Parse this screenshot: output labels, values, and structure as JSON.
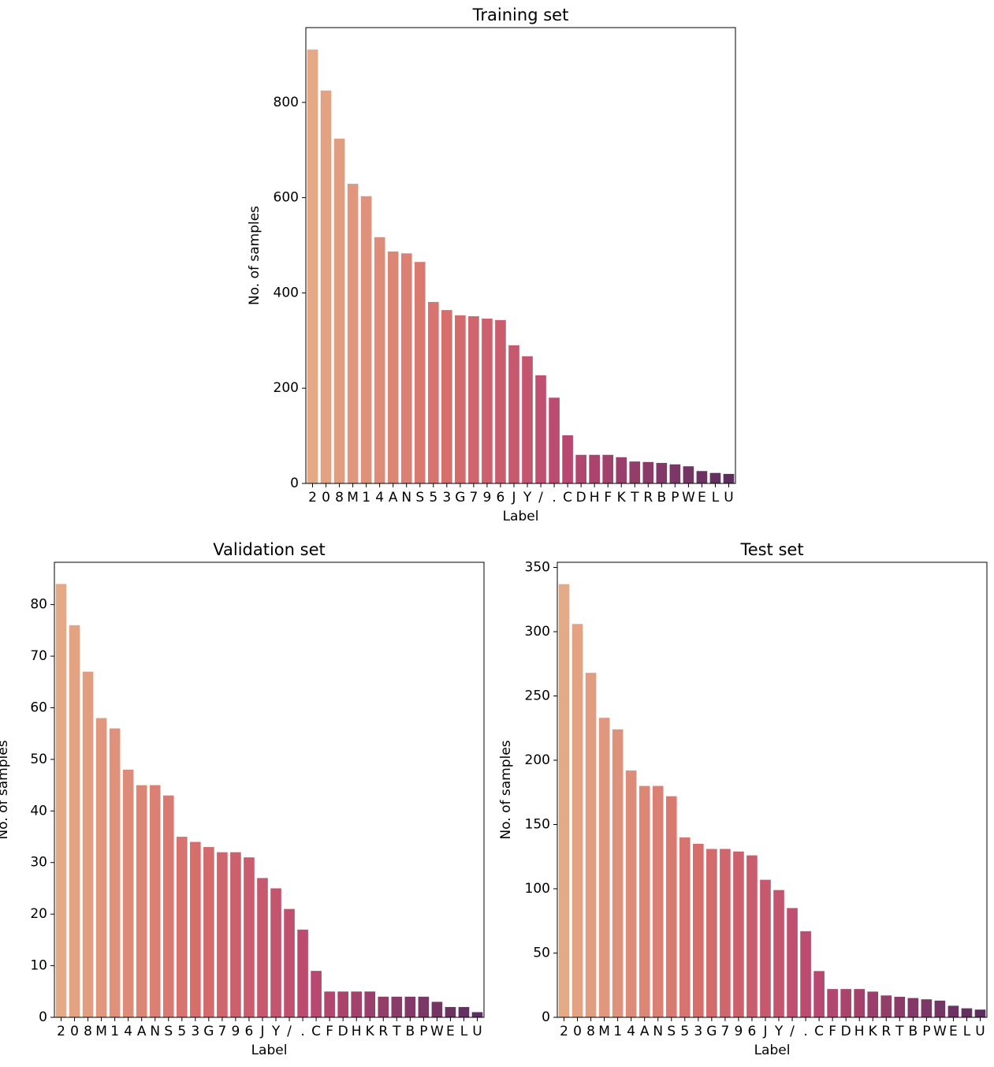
{
  "chart_data": [
    {
      "type": "bar",
      "title": "Training set",
      "x_label": "Label",
      "y_label": "No. of samples",
      "categories": [
        "2",
        "0",
        "8",
        "M",
        "1",
        "4",
        "A",
        "N",
        "S",
        "5",
        "3",
        "G",
        "7",
        "9",
        "6",
        "J",
        "Y",
        "/",
        ".",
        "C",
        "D",
        "H",
        "F",
        "K",
        "T",
        "R",
        "B",
        "P",
        "W",
        "E",
        "L",
        "U"
      ],
      "values": [
        911,
        825,
        724,
        629,
        603,
        517,
        487,
        483,
        465,
        381,
        364,
        353,
        351,
        346,
        343,
        290,
        267,
        227,
        180,
        101,
        60,
        60,
        60,
        55,
        46,
        45,
        43,
        40,
        36,
        26,
        22,
        20
      ],
      "colors": [
        "#e4a985",
        "#e3a383",
        "#e19d80",
        "#e0977e",
        "#de917b",
        "#dd8c79",
        "#dc8676",
        "#da8074",
        "#d97a71",
        "#d7746f",
        "#d66e6c",
        "#d36a6c",
        "#d0666d",
        "#cc616d",
        "#c95d6e",
        "#c6596e",
        "#c3556e",
        "#bf506f",
        "#bc4c6f",
        "#b94870",
        "#b1466f",
        "#aa446d",
        "#a2416c",
        "#9a3f6b",
        "#933d69",
        "#8b3b68",
        "#833967",
        "#7b3765",
        "#743464",
        "#6c3263",
        "#643061",
        "#5c2e60"
      ],
      "ylim": [
        0,
        957
      ],
      "yticks": [
        0,
        200,
        400,
        600,
        800
      ]
    },
    {
      "type": "bar",
      "title": "Validation set",
      "x_label": "Label",
      "y_label": "No. of samples",
      "categories": [
        "2",
        "0",
        "8",
        "M",
        "1",
        "4",
        "A",
        "N",
        "S",
        "5",
        "3",
        "G",
        "7",
        "9",
        "6",
        "J",
        "Y",
        "/",
        ".",
        "C",
        "F",
        "D",
        "H",
        "K",
        "R",
        "T",
        "B",
        "P",
        "W",
        "E",
        "L",
        "U"
      ],
      "values": [
        84,
        76,
        67,
        58,
        56,
        48,
        45,
        45,
        43,
        35,
        34,
        33,
        32,
        32,
        31,
        27,
        25,
        21,
        17,
        9,
        5,
        5,
        5,
        5,
        4,
        4,
        4,
        4,
        3,
        2,
        2,
        1
      ],
      "colors": [
        "#e4a985",
        "#e3a383",
        "#e19d80",
        "#e0977e",
        "#de917b",
        "#dd8c79",
        "#dc8676",
        "#da8074",
        "#d97a71",
        "#d7746f",
        "#d66e6c",
        "#d36a6c",
        "#d0666d",
        "#cc616d",
        "#c95d6e",
        "#c6596e",
        "#c3556e",
        "#bf506f",
        "#bc4c6f",
        "#b94870",
        "#b1466f",
        "#aa446d",
        "#a2416c",
        "#9a3f6b",
        "#933d69",
        "#8b3b68",
        "#833967",
        "#7b3765",
        "#743464",
        "#6c3263",
        "#643061",
        "#5c2e60"
      ],
      "ylim": [
        0,
        88.2
      ],
      "yticks": [
        0,
        10,
        20,
        30,
        40,
        50,
        60,
        70,
        80
      ]
    },
    {
      "type": "bar",
      "title": "Test set",
      "x_label": "Label",
      "y_label": "No. of samples",
      "categories": [
        "2",
        "0",
        "8",
        "M",
        "1",
        "4",
        "A",
        "N",
        "S",
        "5",
        "3",
        "G",
        "7",
        "9",
        "6",
        "J",
        "Y",
        "/",
        ".",
        "C",
        "F",
        "D",
        "H",
        "K",
        "R",
        "T",
        "B",
        "P",
        "W",
        "E",
        "L",
        "U"
      ],
      "values": [
        337,
        306,
        268,
        233,
        224,
        192,
        180,
        180,
        172,
        140,
        135,
        131,
        131,
        129,
        126,
        107,
        99,
        85,
        67,
        36,
        22,
        22,
        22,
        20,
        17,
        16,
        15,
        14,
        13,
        9,
        7,
        6
      ],
      "colors": [
        "#e4a985",
        "#e3a383",
        "#e19d80",
        "#e0977e",
        "#de917b",
        "#dd8c79",
        "#dc8676",
        "#da8074",
        "#d97a71",
        "#d7746f",
        "#d66e6c",
        "#d36a6c",
        "#d0666d",
        "#cc616d",
        "#c95d6e",
        "#c6596e",
        "#c3556e",
        "#bf506f",
        "#bc4c6f",
        "#b94870",
        "#b1466f",
        "#aa446d",
        "#a2416c",
        "#9a3f6b",
        "#933d69",
        "#8b3b68",
        "#833967",
        "#7b3765",
        "#743464",
        "#6c3263",
        "#643061",
        "#5c2e60"
      ],
      "ylim": [
        0,
        354
      ],
      "yticks": [
        0,
        50,
        100,
        150,
        200,
        250,
        300,
        350
      ]
    }
  ]
}
